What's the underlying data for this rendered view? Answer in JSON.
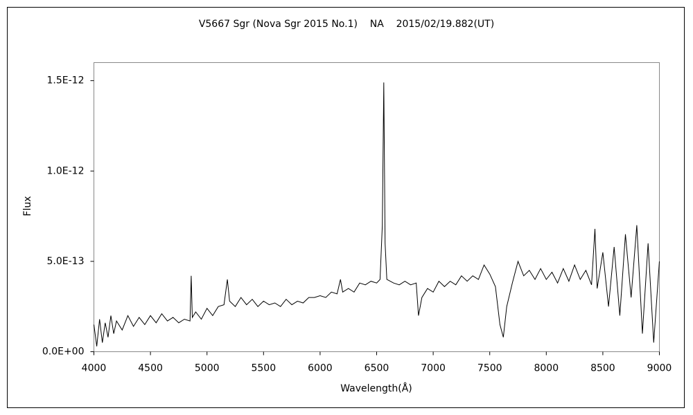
{
  "chart_data": {
    "type": "line",
    "title": "V5667 Sgr (Nova Sgr 2015 No.1)    NA    2015/02/19.882(UT)",
    "xlabel": "Wavelength(Å)",
    "ylabel": "Flux",
    "color": "#000000",
    "grid": false,
    "xlim": [
      4000,
      9000
    ],
    "xticks": [
      4000,
      4500,
      5000,
      5500,
      6000,
      6500,
      7000,
      7500,
      8000,
      8500,
      9000
    ],
    "ylim": [
      0,
      1.6e-12
    ],
    "yticks": [
      {
        "value": 0,
        "label": "0.0E+00"
      },
      {
        "value": 5e-13,
        "label": "5.0E-13"
      },
      {
        "value": 1e-12,
        "label": "1.0E-12"
      },
      {
        "value": 1.5e-12,
        "label": "1.5E-12"
      }
    ],
    "x": [
      4000,
      4025,
      4050,
      4075,
      4100,
      4125,
      4150,
      4175,
      4200,
      4250,
      4300,
      4350,
      4400,
      4450,
      4500,
      4550,
      4600,
      4650,
      4700,
      4750,
      4800,
      4850,
      4860,
      4870,
      4900,
      4950,
      5000,
      5050,
      5100,
      5150,
      5180,
      5200,
      5250,
      5300,
      5350,
      5400,
      5450,
      5500,
      5550,
      5600,
      5650,
      5700,
      5750,
      5800,
      5850,
      5900,
      5950,
      6000,
      6050,
      6100,
      6150,
      6180,
      6200,
      6250,
      6300,
      6350,
      6400,
      6450,
      6500,
      6530,
      6550,
      6563,
      6575,
      6590,
      6650,
      6700,
      6750,
      6800,
      6850,
      6870,
      6900,
      6950,
      7000,
      7050,
      7100,
      7150,
      7200,
      7250,
      7300,
      7350,
      7400,
      7450,
      7500,
      7550,
      7590,
      7620,
      7650,
      7700,
      7750,
      7800,
      7850,
      7900,
      7950,
      8000,
      8050,
      8100,
      8150,
      8200,
      8250,
      8300,
      8350,
      8400,
      8430,
      8450,
      8500,
      8550,
      8600,
      8650,
      8700,
      8750,
      8800,
      8850,
      8900,
      8950,
      9000
    ],
    "values": [
      1.5e-13,
      3e-14,
      1.8e-13,
      5e-14,
      1.6e-13,
      8e-14,
      2e-13,
      1e-13,
      1.7e-13,
      1.2e-13,
      2e-13,
      1.4e-13,
      1.9e-13,
      1.5e-13,
      2e-13,
      1.6e-13,
      2.1e-13,
      1.7e-13,
      1.9e-13,
      1.6e-13,
      1.8e-13,
      1.7e-13,
      4.2e-13,
      1.9e-13,
      2.2e-13,
      1.8e-13,
      2.4e-13,
      2e-13,
      2.5e-13,
      2.6e-13,
      4e-13,
      2.8e-13,
      2.5e-13,
      3e-13,
      2.6e-13,
      2.9e-13,
      2.5e-13,
      2.8e-13,
      2.6e-13,
      2.7e-13,
      2.5e-13,
      2.9e-13,
      2.6e-13,
      2.8e-13,
      2.7e-13,
      3e-13,
      3e-13,
      3.1e-13,
      3e-13,
      3.3e-13,
      3.2e-13,
      4e-13,
      3.3e-13,
      3.5e-13,
      3.3e-13,
      3.8e-13,
      3.7e-13,
      3.9e-13,
      3.8e-13,
      4e-13,
      7e-13,
      1.49e-12,
      6e-13,
      4e-13,
      3.8e-13,
      3.7e-13,
      3.9e-13,
      3.7e-13,
      3.8e-13,
      2e-13,
      3e-13,
      3.5e-13,
      3.3e-13,
      3.9e-13,
      3.6e-13,
      3.9e-13,
      3.7e-13,
      4.2e-13,
      3.9e-13,
      4.2e-13,
      4e-13,
      4.8e-13,
      4.3e-13,
      3.6e-13,
      1.5e-13,
      8e-14,
      2.5e-13,
      3.8e-13,
      5e-13,
      4.2e-13,
      4.5e-13,
      4e-13,
      4.6e-13,
      4e-13,
      4.4e-13,
      3.8e-13,
      4.6e-13,
      3.9e-13,
      4.8e-13,
      4e-13,
      4.5e-13,
      3.7e-13,
      6.8e-13,
      3.5e-13,
      5.5e-13,
      2.5e-13,
      5.8e-13,
      2e-13,
      6.5e-13,
      3e-13,
      7e-13,
      1e-13,
      6e-13,
      5e-14,
      5e-13
    ]
  }
}
